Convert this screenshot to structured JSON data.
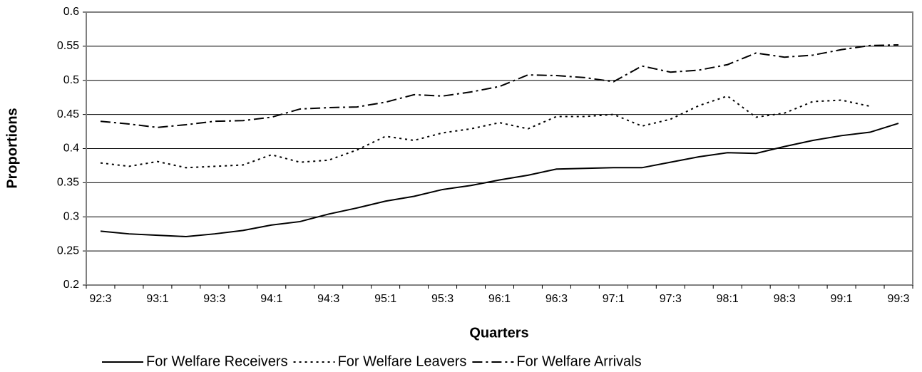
{
  "chart_data": {
    "type": "line",
    "x_label": "Quarters",
    "y_label": "Proportions",
    "categories": [
      "92:3",
      null,
      "93:1",
      null,
      "93:3",
      null,
      "94:1",
      null,
      "94:3",
      null,
      "95:1",
      null,
      "95:3",
      null,
      "96:1",
      null,
      "96:3",
      null,
      "97:1",
      null,
      "97:3",
      null,
      "98:1",
      null,
      "98:3",
      null,
      "99:1",
      null,
      "99:3"
    ],
    "series": [
      {
        "name": "For Welfare Receivers",
        "color": "#000000",
        "dash": "solid",
        "values": [
          0.279,
          0.275,
          0.273,
          0.271,
          0.275,
          0.28,
          0.288,
          0.293,
          0.304,
          0.313,
          0.323,
          0.33,
          0.34,
          0.346,
          0.354,
          0.361,
          0.37,
          0.371,
          0.372,
          0.372,
          0.38,
          0.388,
          0.394,
          0.393,
          0.403,
          0.412,
          0.419,
          0.424,
          0.437
        ]
      },
      {
        "name": "For Welfare Leavers",
        "color": "#000000",
        "dash": "dotted",
        "values": [
          0.379,
          0.374,
          0.381,
          0.372,
          0.374,
          0.376,
          0.391,
          0.38,
          0.383,
          0.398,
          0.418,
          0.412,
          0.423,
          0.429,
          0.438,
          0.429,
          0.447,
          0.447,
          0.45,
          0.433,
          0.443,
          0.463,
          0.477,
          0.446,
          0.452,
          0.469,
          0.471,
          0.462,
          null
        ]
      },
      {
        "name": "For Welfare Arrivals",
        "color": "#000000",
        "dash": "dashdot",
        "values": [
          0.44,
          0.436,
          0.431,
          0.435,
          0.44,
          0.441,
          0.446,
          0.458,
          0.46,
          0.461,
          0.468,
          0.479,
          0.477,
          0.483,
          0.491,
          0.508,
          0.507,
          0.504,
          0.498,
          0.521,
          0.512,
          0.515,
          0.523,
          0.54,
          0.534,
          0.537,
          0.545,
          0.551,
          0.552
        ]
      }
    ],
    "ylim": [
      0.2,
      0.6
    ],
    "yticks": [
      0.2,
      0.25,
      0.3,
      0.35,
      0.4,
      0.45,
      0.5,
      0.55,
      0.6
    ],
    "grid": true,
    "legend": "bottom"
  }
}
